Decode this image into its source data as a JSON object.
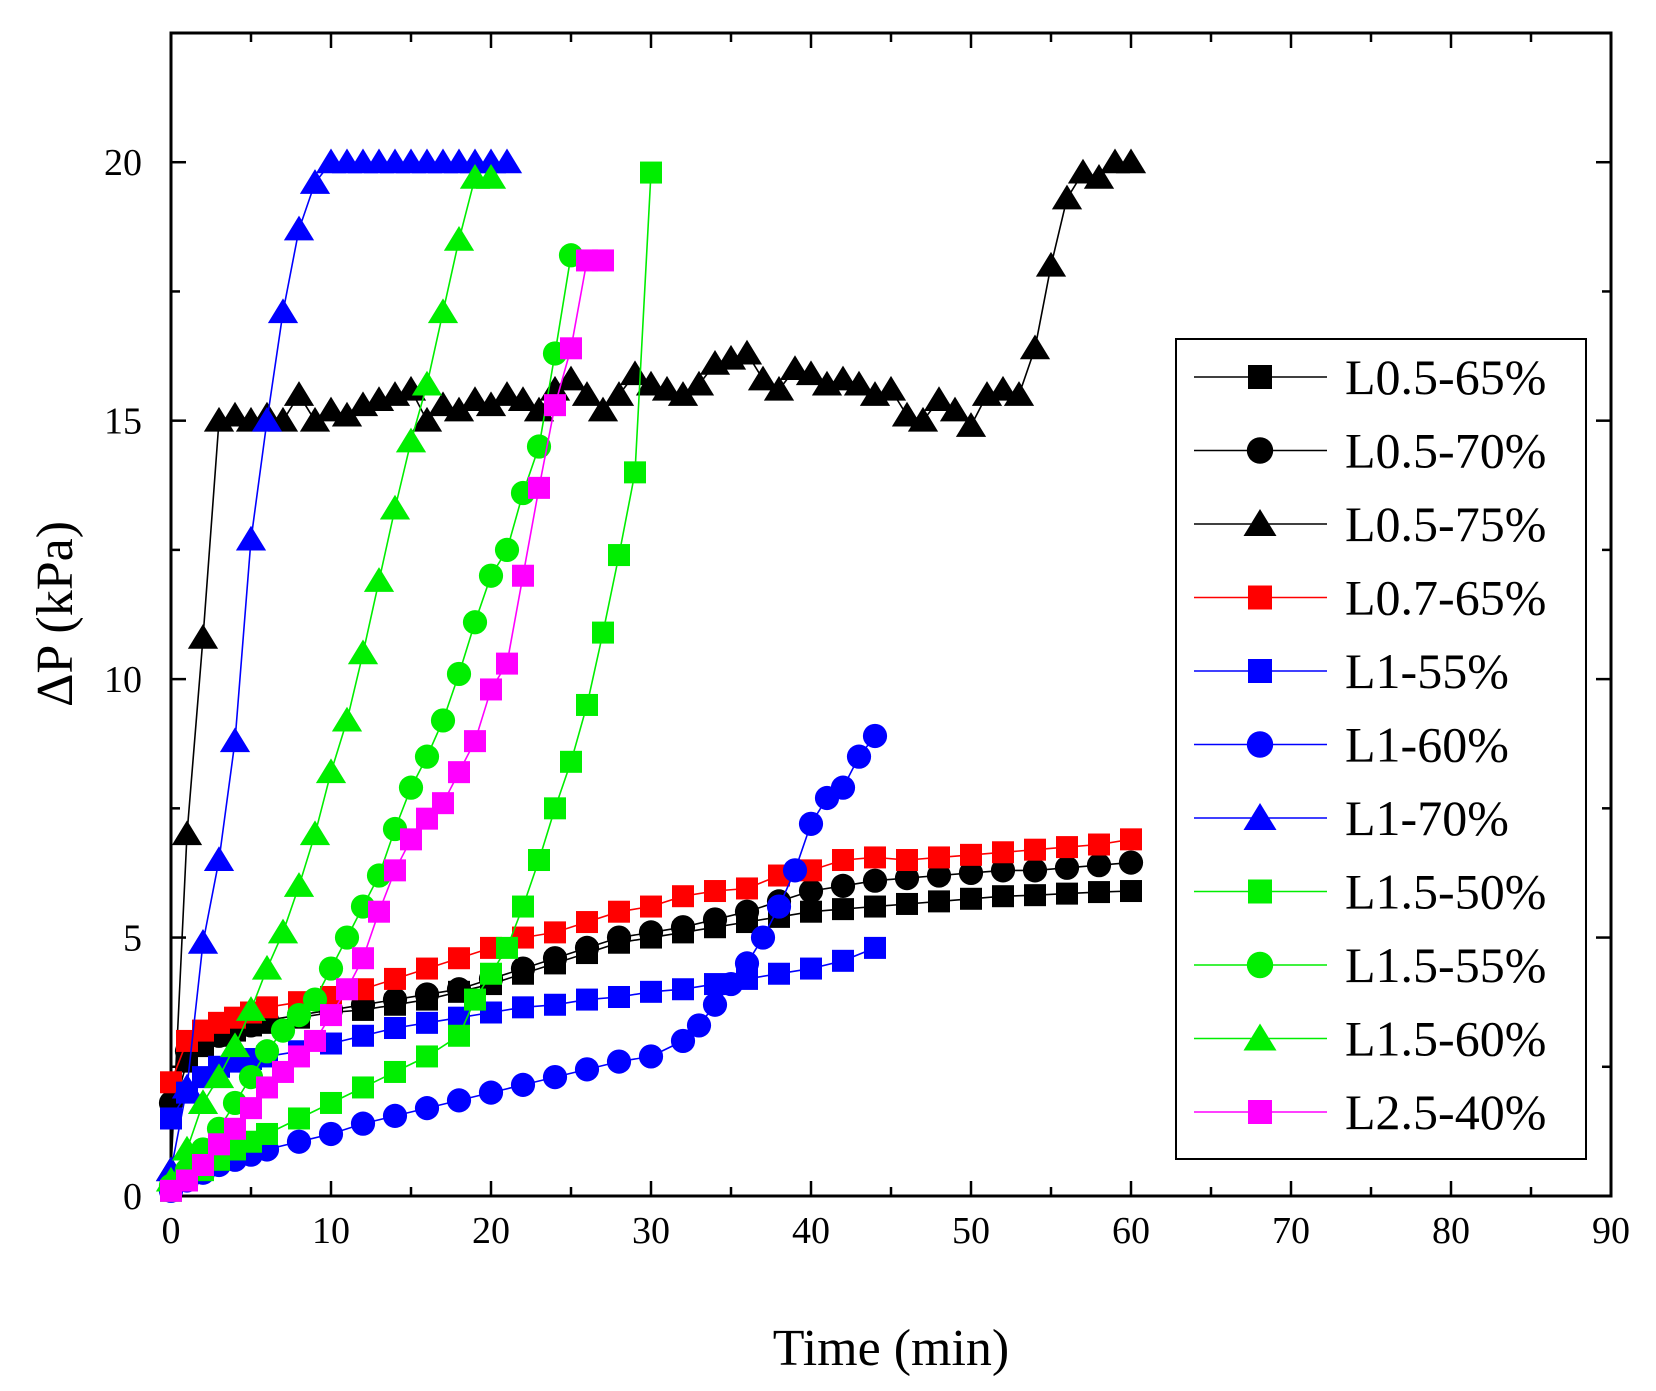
{
  "chart_data": {
    "type": "line",
    "xlabel": "Time (min)",
    "ylabel": "ΔP (kPa)",
    "xlim": [
      0,
      90
    ],
    "ylim": [
      0,
      22.5
    ],
    "xticks": [
      "0",
      "10",
      "20",
      "30",
      "40",
      "50",
      "60",
      "70",
      "80",
      "90"
    ],
    "yticks": [
      "0",
      "5",
      "10",
      "15",
      "20"
    ],
    "grid": false,
    "legend_position": "right",
    "series": [
      {
        "name": "L0.5-65%",
        "color": "#000000",
        "marker": "square",
        "x": [
          0,
          1,
          2,
          3,
          4,
          5,
          6,
          8,
          10,
          12,
          14,
          16,
          18,
          20,
          22,
          24,
          26,
          28,
          30,
          32,
          34,
          36,
          38,
          40,
          42,
          44,
          46,
          48,
          50,
          52,
          54,
          56,
          58,
          60
        ],
        "y": [
          1.5,
          2.6,
          2.9,
          3.1,
          3.2,
          3.3,
          3.35,
          3.45,
          3.55,
          3.6,
          3.7,
          3.8,
          3.95,
          4.1,
          4.3,
          4.5,
          4.7,
          4.9,
          5.0,
          5.1,
          5.2,
          5.3,
          5.4,
          5.5,
          5.55,
          5.6,
          5.65,
          5.7,
          5.75,
          5.8,
          5.82,
          5.85,
          5.88,
          5.9
        ]
      },
      {
        "name": "L0.5-70%",
        "color": "#000000",
        "marker": "circle",
        "x": [
          0,
          1,
          2,
          3,
          4,
          5,
          6,
          8,
          10,
          12,
          14,
          16,
          18,
          20,
          22,
          24,
          26,
          28,
          30,
          32,
          34,
          36,
          38,
          40,
          42,
          44,
          46,
          48,
          50,
          52,
          54,
          56,
          58,
          60
        ],
        "y": [
          1.8,
          2.8,
          3.0,
          3.1,
          3.2,
          3.3,
          3.4,
          3.5,
          3.6,
          3.7,
          3.8,
          3.9,
          4.0,
          4.2,
          4.4,
          4.6,
          4.8,
          5.0,
          5.1,
          5.2,
          5.35,
          5.5,
          5.7,
          5.9,
          6.0,
          6.1,
          6.15,
          6.2,
          6.25,
          6.3,
          6.3,
          6.35,
          6.4,
          6.45
        ]
      },
      {
        "name": "L0.5-75%",
        "color": "#000000",
        "marker": "triangle",
        "x": [
          0,
          1,
          2,
          3,
          4,
          5,
          6,
          7,
          8,
          9,
          10,
          11,
          12,
          13,
          14,
          15,
          16,
          17,
          18,
          19,
          20,
          21,
          22,
          23,
          24,
          25,
          26,
          27,
          28,
          29,
          30,
          31,
          32,
          33,
          34,
          35,
          36,
          37,
          38,
          39,
          40,
          41,
          42,
          43,
          44,
          45,
          46,
          47,
          48,
          49,
          50,
          51,
          52,
          53,
          54,
          55,
          56,
          57,
          58,
          59,
          60
        ],
        "y": [
          0.5,
          7.0,
          10.8,
          15.0,
          15.1,
          15.0,
          15.1,
          15.0,
          15.5,
          15.0,
          15.2,
          15.1,
          15.3,
          15.4,
          15.5,
          15.6,
          15.0,
          15.3,
          15.2,
          15.4,
          15.3,
          15.5,
          15.4,
          15.2,
          15.6,
          15.8,
          15.5,
          15.2,
          15.5,
          15.9,
          15.7,
          15.6,
          15.5,
          15.7,
          16.1,
          16.2,
          16.3,
          15.8,
          15.6,
          16.0,
          15.9,
          15.7,
          15.8,
          15.7,
          15.5,
          15.6,
          15.1,
          15.0,
          15.4,
          15.2,
          14.9,
          15.5,
          15.6,
          15.5,
          16.4,
          18.0,
          19.3,
          19.8,
          19.7,
          20.0,
          20.0
        ]
      },
      {
        "name": "L0.7-65%",
        "color": "#ff0000",
        "marker": "square",
        "x": [
          0,
          1,
          2,
          3,
          4,
          5,
          6,
          8,
          10,
          12,
          14,
          16,
          18,
          20,
          22,
          24,
          26,
          28,
          30,
          32,
          34,
          36,
          38,
          40,
          42,
          44,
          46,
          48,
          50,
          52,
          54,
          56,
          58,
          60
        ],
        "y": [
          2.2,
          3.0,
          3.2,
          3.35,
          3.45,
          3.55,
          3.65,
          3.75,
          3.85,
          4.0,
          4.2,
          4.4,
          4.6,
          4.8,
          5.0,
          5.1,
          5.3,
          5.5,
          5.6,
          5.8,
          5.9,
          5.95,
          6.2,
          6.3,
          6.5,
          6.55,
          6.5,
          6.55,
          6.6,
          6.65,
          6.7,
          6.75,
          6.8,
          6.9
        ]
      },
      {
        "name": "L1-55%",
        "color": "#0000ff",
        "marker": "square",
        "x": [
          0,
          1,
          2,
          3,
          4,
          5,
          6,
          8,
          10,
          12,
          14,
          16,
          18,
          20,
          22,
          24,
          26,
          28,
          30,
          32,
          34,
          36,
          38,
          40,
          42,
          44
        ],
        "y": [
          1.5,
          2.0,
          2.3,
          2.5,
          2.6,
          2.65,
          2.7,
          2.8,
          2.95,
          3.1,
          3.25,
          3.35,
          3.45,
          3.55,
          3.65,
          3.7,
          3.8,
          3.85,
          3.95,
          4.0,
          4.1,
          4.2,
          4.3,
          4.4,
          4.55,
          4.8
        ]
      },
      {
        "name": "L1-60%",
        "color": "#0000ff",
        "marker": "circle",
        "x": [
          0,
          1,
          2,
          3,
          4,
          5,
          6,
          8,
          10,
          12,
          14,
          16,
          18,
          20,
          22,
          24,
          26,
          28,
          30,
          32,
          33,
          34,
          35,
          36,
          37,
          38,
          39,
          40,
          41,
          42,
          43,
          44
        ],
        "y": [
          0.1,
          0.3,
          0.45,
          0.6,
          0.7,
          0.8,
          0.9,
          1.05,
          1.2,
          1.4,
          1.55,
          1.7,
          1.85,
          2.0,
          2.15,
          2.3,
          2.45,
          2.6,
          2.7,
          3.0,
          3.3,
          3.7,
          4.1,
          4.5,
          5.0,
          5.6,
          6.3,
          7.2,
          7.7,
          7.9,
          8.5,
          8.9
        ]
      },
      {
        "name": "L1-70%",
        "color": "#0000ff",
        "marker": "triangle",
        "x": [
          0,
          1,
          2,
          3,
          4,
          5,
          6,
          7,
          8,
          9,
          10,
          11,
          12,
          13,
          14,
          15,
          16,
          17,
          18,
          19,
          20,
          21
        ],
        "y": [
          0.5,
          2.1,
          4.9,
          6.5,
          8.8,
          12.7,
          15.0,
          17.1,
          18.7,
          19.6,
          20.0,
          20.0,
          20.0,
          20.0,
          20.0,
          20.0,
          20.0,
          20.0,
          20.0,
          20.0,
          20.0,
          20.0
        ]
      },
      {
        "name": "L1.5-50%",
        "color": "#00ee00",
        "marker": "square",
        "x": [
          0,
          1,
          2,
          3,
          4,
          5,
          6,
          8,
          10,
          12,
          14,
          16,
          18,
          19,
          20,
          21,
          22,
          23,
          24,
          25,
          26,
          27,
          28,
          29,
          30
        ],
        "y": [
          0.1,
          0.3,
          0.5,
          0.7,
          0.9,
          1.05,
          1.2,
          1.5,
          1.8,
          2.1,
          2.4,
          2.7,
          3.1,
          3.8,
          4.3,
          4.8,
          5.6,
          6.5,
          7.5,
          8.4,
          9.5,
          10.9,
          12.4,
          14.0,
          19.8
        ]
      },
      {
        "name": "L1.5-55%",
        "color": "#00ee00",
        "marker": "circle",
        "x": [
          0,
          1,
          2,
          3,
          4,
          5,
          6,
          7,
          8,
          9,
          10,
          11,
          12,
          13,
          14,
          15,
          16,
          17,
          18,
          19,
          20,
          21,
          22,
          23,
          24,
          25
        ],
        "y": [
          0.2,
          0.5,
          0.9,
          1.3,
          1.8,
          2.3,
          2.8,
          3.2,
          3.5,
          3.8,
          4.4,
          5.0,
          5.6,
          6.2,
          7.1,
          7.9,
          8.5,
          9.2,
          10.1,
          11.1,
          12.0,
          12.5,
          13.6,
          14.5,
          16.3,
          18.2
        ]
      },
      {
        "name": "L1.5-60%",
        "color": "#00ee00",
        "marker": "triangle",
        "x": [
          0,
          1,
          2,
          3,
          4,
          5,
          6,
          7,
          8,
          9,
          10,
          11,
          12,
          13,
          14,
          15,
          16,
          17,
          18,
          19,
          20
        ],
        "y": [
          0.3,
          0.9,
          1.8,
          2.3,
          2.9,
          3.6,
          4.4,
          5.1,
          6.0,
          7.0,
          8.2,
          9.2,
          10.5,
          11.9,
          13.3,
          14.6,
          15.7,
          17.1,
          18.5,
          19.7,
          19.7
        ]
      },
      {
        "name": "L2.5-40%",
        "color": "#ff00ff",
        "marker": "square",
        "x": [
          0,
          1,
          2,
          3,
          4,
          5,
          6,
          7,
          8,
          9,
          10,
          11,
          12,
          13,
          14,
          15,
          16,
          17,
          18,
          19,
          20,
          21,
          22,
          23,
          24,
          25,
          26,
          27
        ],
        "y": [
          0.1,
          0.3,
          0.6,
          1.0,
          1.3,
          1.7,
          2.1,
          2.4,
          2.7,
          3.0,
          3.5,
          4.0,
          4.6,
          5.5,
          6.3,
          6.9,
          7.3,
          7.6,
          8.2,
          8.8,
          9.8,
          10.3,
          12.0,
          13.7,
          15.3,
          16.4,
          18.1,
          18.1
        ]
      }
    ]
  }
}
